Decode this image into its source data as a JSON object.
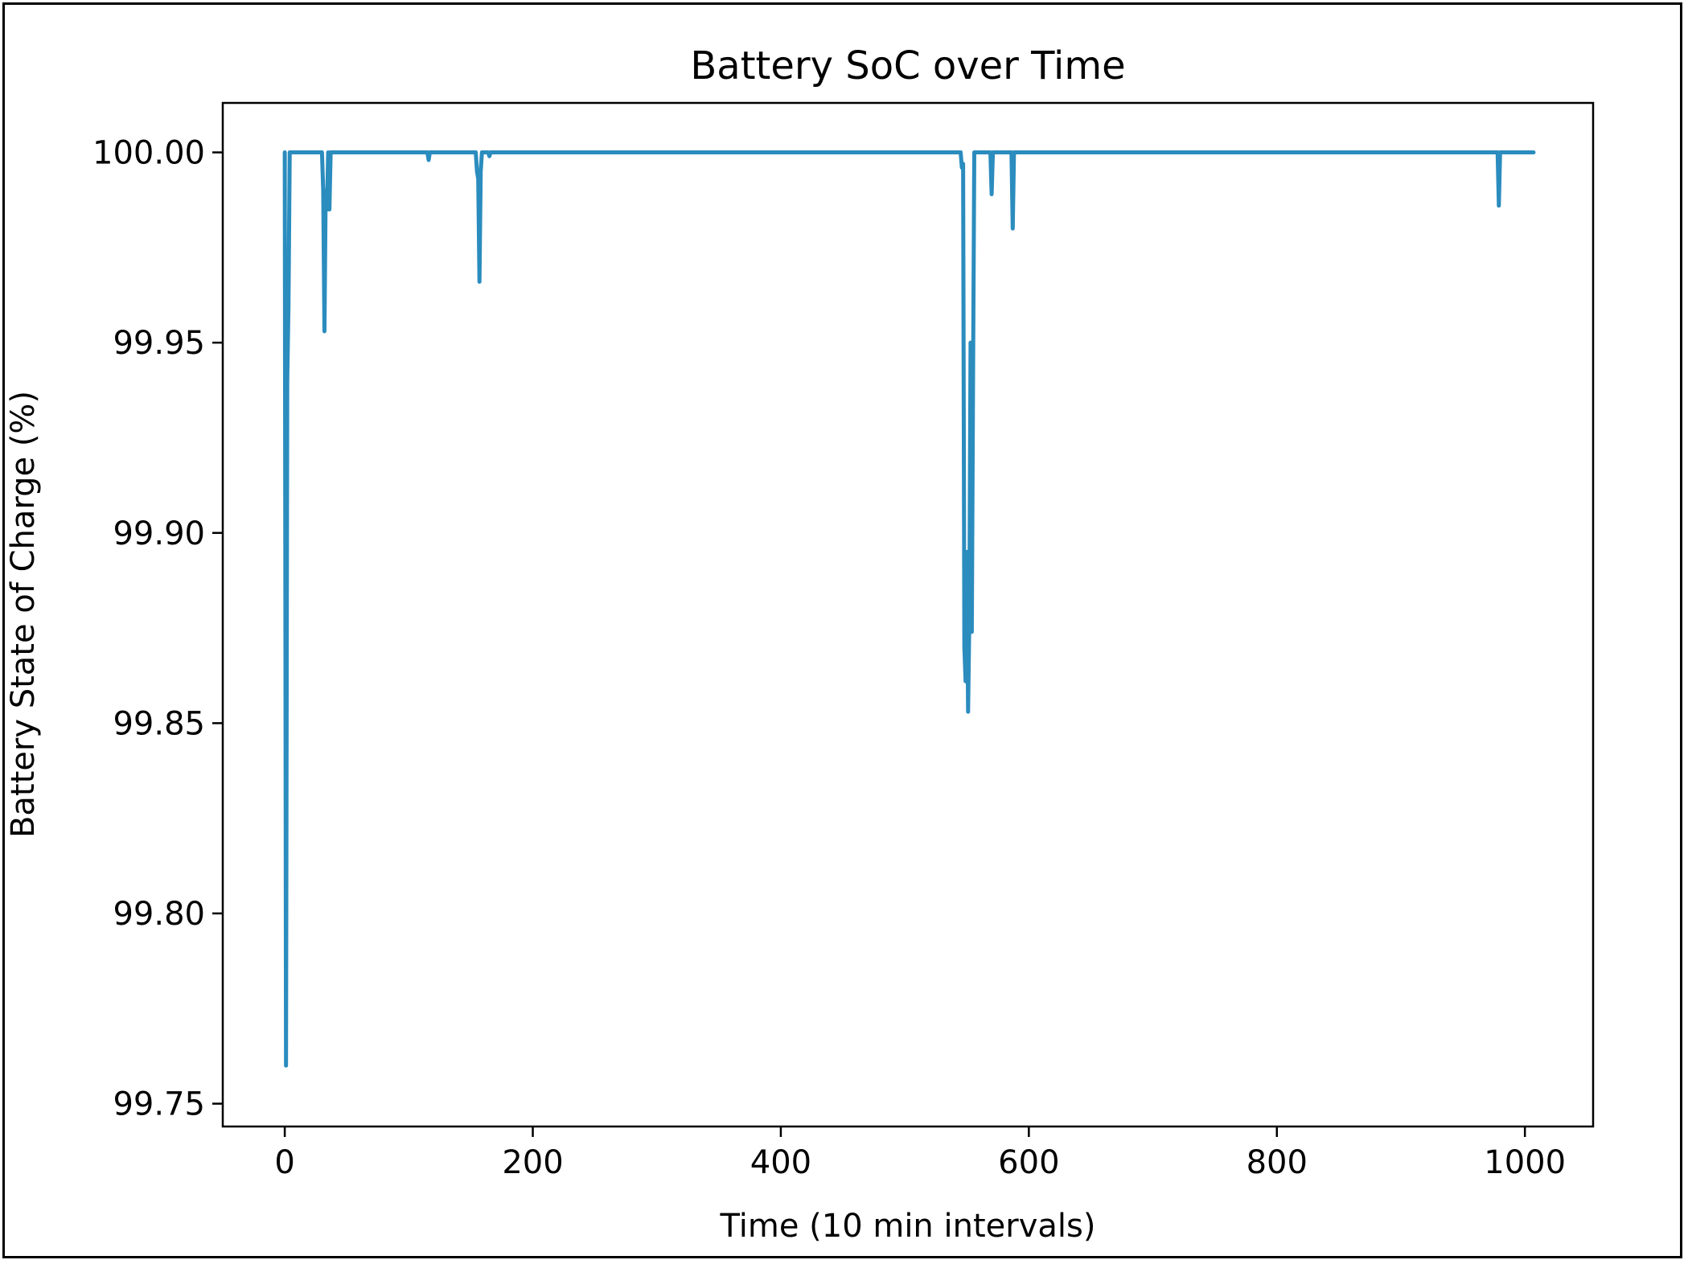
{
  "chart_data": {
    "type": "line",
    "title": "Battery SoC over Time",
    "xlabel": "Time (10 min intervals)",
    "ylabel": "Battery State of Charge (%)",
    "xlim": [
      -50,
      1055
    ],
    "ylim": [
      99.744,
      100.013
    ],
    "xticks": [
      0,
      200,
      400,
      600,
      800,
      1000
    ],
    "xtick_labels": [
      "0",
      "200",
      "400",
      "600",
      "800",
      "1000"
    ],
    "yticks": [
      99.75,
      99.8,
      99.85,
      99.9,
      99.95,
      100.0
    ],
    "ytick_labels": [
      "99.75",
      "99.80",
      "99.85",
      "99.90",
      "99.95",
      "100.00"
    ],
    "grid": false,
    "legend": "none",
    "series": [
      {
        "color": "#2b8cbe",
        "x": [
          0,
          1,
          2,
          3,
          4,
          5,
          6,
          29,
          30,
          31,
          32,
          33,
          34,
          35,
          36,
          37,
          38,
          115,
          116,
          117,
          118,
          154,
          155,
          156,
          157,
          158,
          159,
          164,
          165,
          166,
          167,
          545,
          546,
          547,
          548,
          549,
          550,
          551,
          552,
          553,
          554,
          555,
          556,
          557,
          558,
          559,
          569,
          570,
          571,
          572,
          573,
          586,
          587,
          588,
          589,
          978,
          979,
          980,
          981,
          1007
        ],
        "y": [
          100.0,
          99.76,
          99.94,
          99.96,
          100.0,
          100.0,
          100.0,
          100.0,
          100.0,
          99.99,
          99.953,
          99.99,
          99.985,
          100.0,
          99.985,
          100.0,
          100.0,
          100.0,
          99.998,
          100.0,
          100.0,
          100.0,
          99.995,
          99.993,
          99.966,
          99.995,
          100.0,
          100.0,
          99.999,
          100.0,
          100.0,
          100.0,
          99.996,
          99.997,
          99.87,
          99.861,
          99.895,
          99.853,
          99.877,
          99.95,
          99.874,
          99.94,
          100.0,
          100.0,
          100.0,
          100.0,
          100.0,
          99.989,
          100.0,
          100.0,
          100.0,
          100.0,
          99.98,
          100.0,
          100.0,
          100.0,
          99.986,
          100.0,
          100.0,
          100.0
        ]
      }
    ]
  }
}
